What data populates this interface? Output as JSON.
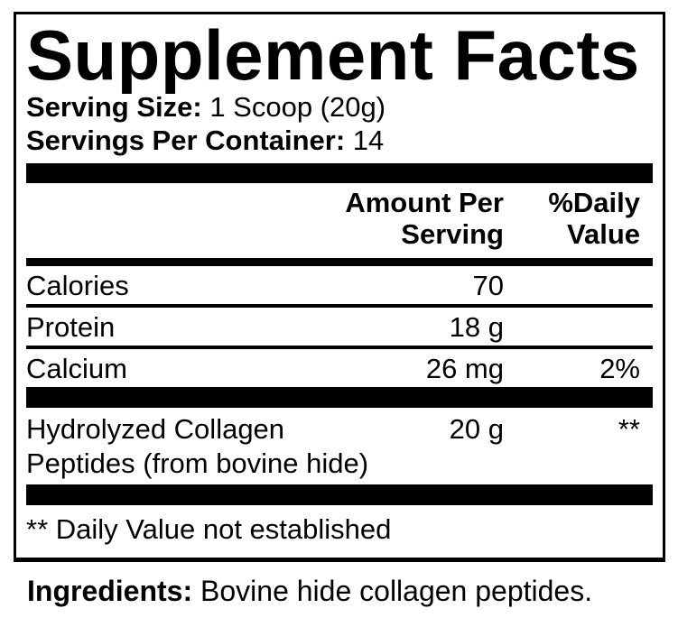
{
  "panel": {
    "title": "Supplement Facts",
    "serving_size": {
      "label": "Serving Size:",
      "value": "1 Scoop (20g)"
    },
    "servings_per_container": {
      "label": "Servings Per Container:",
      "value": "14"
    },
    "columns": {
      "amount_line1": "Amount Per",
      "amount_line2": "Serving",
      "dv_line1": "%Daily",
      "dv_line2": "Value"
    },
    "rows": [
      {
        "name": "Calories",
        "amount": "70",
        "daily_value": ""
      },
      {
        "name": "Protein",
        "amount": "18 g",
        "daily_value": ""
      },
      {
        "name": "Calcium",
        "amount": "26 mg",
        "daily_value": "2%"
      },
      {
        "name": "Hydrolyzed Collagen",
        "name_line2": "Peptides (from bovine hide)",
        "amount": "20 g",
        "daily_value": "**"
      }
    ],
    "footnote": "** Daily Value not established"
  },
  "ingredients": {
    "label": "Ingredients:",
    "value": "Bovine hide collagen peptides."
  },
  "colors": {
    "text": "#000000",
    "background": "#ffffff",
    "rule": "#000000"
  }
}
